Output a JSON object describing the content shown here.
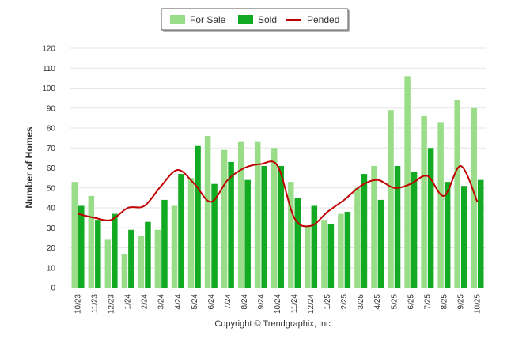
{
  "chart_data": {
    "type": "bar",
    "title": "",
    "xlabel": "",
    "ylabel": "Number of Homes",
    "ylim": [
      0,
      120
    ],
    "yticks": [
      0,
      10,
      20,
      30,
      40,
      50,
      60,
      70,
      80,
      90,
      100,
      110,
      120
    ],
    "grid": true,
    "legend_position": "top-center",
    "categories": [
      "10/23",
      "11/23",
      "12/23",
      "1/24",
      "2/24",
      "3/24",
      "4/24",
      "5/24",
      "6/24",
      "7/24",
      "8/24",
      "9/24",
      "10/24",
      "11/24",
      "12/24",
      "1/25",
      "2/25",
      "3/25",
      "4/25",
      "5/25",
      "6/25",
      "7/25",
      "8/25",
      "9/25",
      "10/25"
    ],
    "series": [
      {
        "name": "For Sale",
        "type": "bar",
        "color": "#99dd88",
        "values": [
          53,
          46,
          24,
          17,
          26,
          29,
          41,
          55,
          76,
          69,
          73,
          73,
          70,
          53,
          31,
          34,
          37,
          50,
          61,
          89,
          106,
          86,
          83,
          94,
          90
        ]
      },
      {
        "name": "Sold",
        "type": "bar",
        "color": "#11aa22",
        "values": [
          41,
          34,
          37,
          29,
          33,
          44,
          57,
          71,
          52,
          63,
          54,
          61,
          61,
          45,
          41,
          32,
          38,
          57,
          44,
          61,
          58,
          70,
          53,
          51,
          54
        ]
      },
      {
        "name": "Pended",
        "type": "line",
        "color": "#c00000",
        "values": [
          37,
          35,
          34,
          40,
          41,
          51,
          59,
          52,
          43,
          54,
          60,
          62,
          61,
          35,
          31,
          38,
          44,
          51,
          54,
          50,
          52,
          56,
          46,
          61,
          43
        ]
      }
    ],
    "footer": "Copyright © Trendgraphix, Inc."
  }
}
